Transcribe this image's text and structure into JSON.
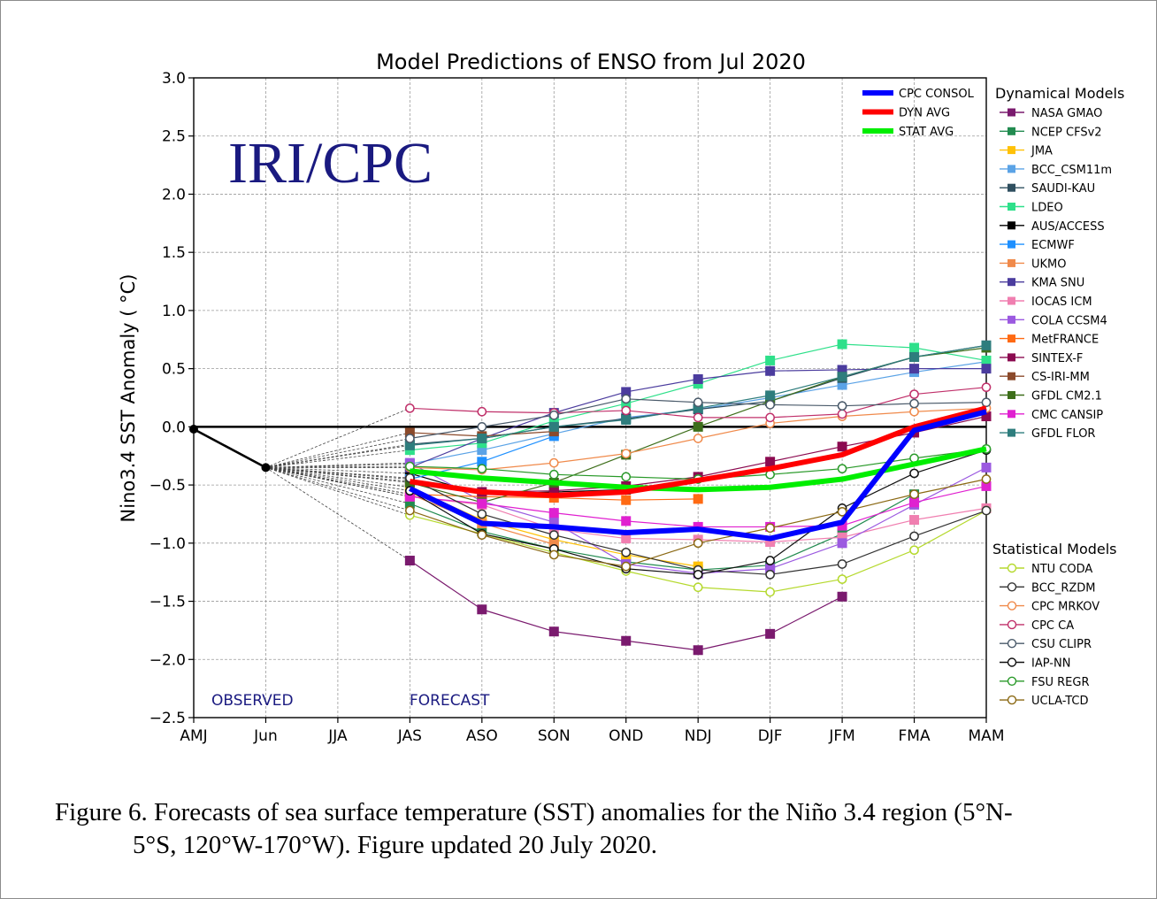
{
  "figure": {
    "caption_line1": "Figure 6. Forecasts of sea surface temperature (SST) anomalies for the Niño 3.4 region (5°N-",
    "caption_line2": "5°S, 120°W-170°W). Figure updated 20 July  2020."
  },
  "chart_data": {
    "type": "line",
    "title": "Model Predictions of ENSO from Jul 2020",
    "watermark": "IRI/CPC",
    "ylabel": "Nino3.4 SST Anomaly ( °C)",
    "xlabel": "",
    "ylim": [
      -2.5,
      3.0
    ],
    "yticks": [
      "3.0",
      "2.5",
      "2.0",
      "1.5",
      "1.0",
      "0.5",
      "0.0",
      "−0.5",
      "−1.0",
      "−1.5",
      "−2.0",
      "−2.5"
    ],
    "ytick_values": [
      3.0,
      2.5,
      2.0,
      1.5,
      1.0,
      0.5,
      0.0,
      -0.5,
      -1.0,
      -1.5,
      -2.0,
      -2.5
    ],
    "categories": [
      "AMJ",
      "Jun",
      "JJA",
      "JAS",
      "ASO",
      "SON",
      "OND",
      "NDJ",
      "DJF",
      "JFM",
      "FMA",
      "MAM"
    ],
    "grid": true,
    "annotations": {
      "observed": "OBSERVED",
      "forecast": "FORECAST"
    },
    "legend_dynamical_title": "Dynamical Models",
    "legend_statistical_title": "Statistical Models",
    "observed": {
      "values": [
        -0.02,
        -0.35
      ]
    },
    "consensus": [
      {
        "name": "CPC CONSOL",
        "color": "#0000ff",
        "values": [
          -0.53,
          -0.83,
          -0.86,
          -0.91,
          -0.88,
          -0.96,
          -0.82,
          -0.03,
          0.13
        ]
      },
      {
        "name": "DYN AVG",
        "color": "#ff0000",
        "values": [
          -0.47,
          -0.56,
          -0.59,
          -0.56,
          -0.46,
          -0.36,
          -0.24,
          0.0,
          0.16
        ]
      },
      {
        "name": "STAT AVG",
        "color": "#00ee00",
        "values": [
          -0.38,
          -0.44,
          -0.48,
          -0.52,
          -0.54,
          -0.52,
          -0.45,
          -0.32,
          -0.19
        ]
      }
    ],
    "dynamical": [
      {
        "name": "NASA GMAO",
        "color": "#7a1a6e",
        "values": [
          -1.15,
          -1.57,
          -1.76,
          -1.84,
          -1.92,
          -1.78,
          -1.46
        ]
      },
      {
        "name": "NCEP CFSv2",
        "color": "#228b50",
        "values": [
          -0.66,
          -0.9,
          -1.05,
          -1.16,
          -1.23,
          -1.19,
          -0.92,
          -0.58
        ]
      },
      {
        "name": "JMA",
        "color": "#ffc107",
        "values": [
          -0.52,
          -0.8,
          -0.97,
          -1.1,
          -1.2
        ]
      },
      {
        "name": "BCC_CSM11m",
        "color": "#5ba3e6",
        "values": [
          -0.32,
          -0.2,
          -0.06,
          0.08,
          0.15,
          0.25,
          0.36,
          0.47,
          0.56
        ]
      },
      {
        "name": "SAUDI-KAU",
        "color": "#2f4f5f",
        "values": [
          -0.15,
          -0.1,
          0.0,
          0.07,
          0.15,
          0.22,
          0.42,
          0.6,
          0.7
        ]
      },
      {
        "name": "LDEO",
        "color": "#2ee08a",
        "values": [
          -0.2,
          -0.14,
          0.05,
          0.2,
          0.37,
          0.57,
          0.71,
          0.68,
          0.57
        ]
      },
      {
        "name": "AUS/ACCESS",
        "color": "#000000",
        "values": [
          -0.4,
          -0.58,
          -0.56,
          -0.54
        ]
      },
      {
        "name": "ECMWF",
        "color": "#1e90ff",
        "values": [
          -0.45,
          -0.3,
          -0.08
        ]
      },
      {
        "name": "UKMO",
        "color": "#f08a4b",
        "values": [
          -0.58,
          -0.83,
          -1.01
        ]
      },
      {
        "name": "KMA SNU",
        "color": "#4b3c9e",
        "values": [
          -0.35,
          -0.1,
          0.12,
          0.3,
          0.41,
          0.48,
          0.49,
          0.5,
          0.5
        ]
      },
      {
        "name": "IOCAS ICM",
        "color": "#f07fb0",
        "values": [
          -0.6,
          -0.67,
          -0.88,
          -0.96,
          -0.97,
          -0.99,
          -0.95,
          -0.8,
          -0.7
        ]
      },
      {
        "name": "COLA CCSM4",
        "color": "#9b59e0",
        "values": [
          -0.31,
          -0.64,
          -0.82,
          -1.18,
          -1.26,
          -1.22,
          -1.0,
          -0.67,
          -0.35
        ]
      },
      {
        "name": "MetFRANCE",
        "color": "#ff6a13",
        "values": [
          -0.58,
          -0.6,
          -0.61,
          -0.63,
          -0.62
        ]
      },
      {
        "name": "SINTEX-F",
        "color": "#8b0a50",
        "values": [
          -0.47,
          -0.56,
          -0.55,
          -0.51,
          -0.43,
          -0.3,
          -0.17,
          -0.05,
          0.09
        ]
      },
      {
        "name": "CS-IRI-MM",
        "color": "#8b4a2b",
        "values": [
          -0.05,
          -0.08,
          -0.04
        ]
      },
      {
        "name": "GFDL CM2.1",
        "color": "#3d6e1a",
        "values": [
          -0.48,
          -0.65,
          -0.48,
          -0.24,
          0.0,
          0.22,
          0.43,
          0.6,
          0.68
        ]
      },
      {
        "name": "CMC CANSIP",
        "color": "#e020d0",
        "values": [
          -0.6,
          -0.66,
          -0.74,
          -0.81,
          -0.86,
          -0.86,
          -0.85,
          -0.65,
          -0.51
        ]
      },
      {
        "name": "GFDL FLOR",
        "color": "#2e7d7d",
        "values": [
          -0.16,
          -0.1,
          0.0,
          0.06,
          0.16,
          0.27,
          0.43,
          0.6,
          0.7
        ]
      }
    ],
    "statistical": [
      {
        "name": "NTU CODA",
        "color": "#b5d92e",
        "values": [
          -0.76,
          -0.92,
          -1.08,
          -1.24,
          -1.38,
          -1.42,
          -1.31,
          -1.06,
          -0.72
        ]
      },
      {
        "name": "BCC_RZDM",
        "color": "#333333",
        "values": [
          -0.44,
          -0.75,
          -0.93,
          -1.08,
          -1.23,
          -1.27,
          -1.18,
          -0.94,
          -0.72
        ]
      },
      {
        "name": "CPC MRKOV",
        "color": "#f08a4b",
        "values": [
          -0.35,
          -0.37,
          -0.31,
          -0.23,
          -0.1,
          0.03,
          0.09,
          0.13,
          0.16
        ]
      },
      {
        "name": "CPC CA",
        "color": "#c0306a",
        "values": [
          0.16,
          0.13,
          0.12,
          0.14,
          0.08,
          0.08,
          0.11,
          0.28,
          0.34
        ]
      },
      {
        "name": "CSU CLIPR",
        "color": "#4a5a6a",
        "values": [
          -0.1,
          0.0,
          0.1,
          0.24,
          0.21,
          0.19,
          0.18,
          0.2,
          0.21
        ]
      },
      {
        "name": "IAP-NN",
        "color": "#111111",
        "values": [
          -0.55,
          -0.92,
          -1.05,
          -1.22,
          -1.27,
          -1.15,
          -0.7,
          -0.4,
          -0.2
        ]
      },
      {
        "name": "FSU REGR",
        "color": "#2a9a2a",
        "values": [
          -0.34,
          -0.36,
          -0.41,
          -0.43,
          -0.45,
          -0.41,
          -0.36,
          -0.27,
          -0.19
        ]
      },
      {
        "name": "UCLA-TCD",
        "color": "#8b6914",
        "values": [
          -0.72,
          -0.93,
          -1.1,
          -1.2,
          -1.0,
          -0.87,
          -0.73,
          -0.58,
          -0.45
        ]
      }
    ]
  }
}
